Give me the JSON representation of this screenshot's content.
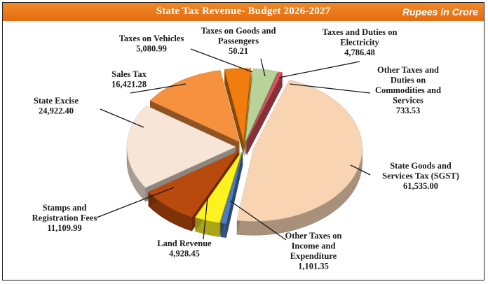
{
  "header": {
    "title": "State Tax Revenue- Budget 2026-2027",
    "unit": "Rupees in Crore"
  },
  "colors": {
    "header": "#e8761a",
    "leader": "#1a1a1a"
  },
  "chart_data": {
    "type": "pie",
    "title": "State Tax Revenue- Budget 2026-2027",
    "unit": "Rupees in Crore",
    "exploded": true,
    "three_d": true,
    "slices": [
      {
        "label": [
          "Taxes and Duties on",
          "Electricity"
        ],
        "value": 4786.48,
        "value_text": "4,786.48",
        "color": "#b8d39a"
      },
      {
        "label": [
          "Other Taxes and",
          "Duties on",
          "Commodities and",
          "Services"
        ],
        "value": 733.53,
        "value_text": "733.53",
        "color": "#e2525f"
      },
      {
        "label": [
          "State Goods and",
          "Services Tax (SGST)"
        ],
        "value": 61535.0,
        "value_text": "61,535.00",
        "color": "#f9d4b3"
      },
      {
        "label": [
          "Other Taxes on",
          "Income and",
          "Expenditure"
        ],
        "value": 1101.35,
        "value_text": "1,101.35",
        "color": "#4c7cc4"
      },
      {
        "label": [
          "Land Revenue"
        ],
        "value": 4928.45,
        "value_text": "4,928.45",
        "color": "#fbf21f"
      },
      {
        "label": [
          "Stamps and",
          "Registration Fees"
        ],
        "value": 11109.99,
        "value_text": "11,109.99",
        "color": "#b84a0d"
      },
      {
        "label": [
          "State Excise"
        ],
        "value": 24922.4,
        "value_text": "24,922.40",
        "color": "#f7e5d7"
      },
      {
        "label": [
          "Sales Tax"
        ],
        "value": 16421.28,
        "value_text": "16,421.28",
        "color": "#f5913f"
      },
      {
        "label": [
          "Taxes on Vehicles"
        ],
        "value": 5080.99,
        "value_text": "5,080.99",
        "color": "#f07d0e"
      },
      {
        "label": [
          "Taxes on Goods and",
          "Passengers"
        ],
        "value": 50.21,
        "value_text": "50.21",
        "color": "#ebb23a"
      }
    ]
  }
}
